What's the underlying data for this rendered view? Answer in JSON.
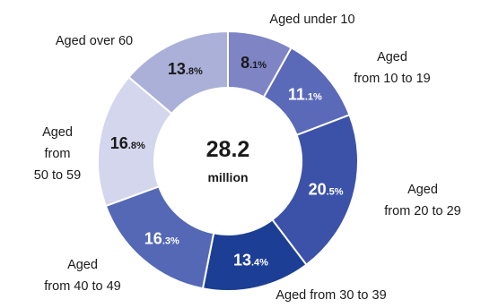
{
  "chart_data": {
    "type": "pie",
    "subtype": "donut",
    "center": {
      "value": "28.2",
      "unit": "million"
    },
    "slices": [
      {
        "label": "Aged under 10",
        "value": 8.1,
        "int": "8",
        "dec": ".1%",
        "color": "#7e84c4",
        "text_color": "#1a1a1a"
      },
      {
        "label": "Aged from 10 to 19",
        "value": 11.1,
        "int": "11",
        "dec": ".1%",
        "color": "#5a69b8",
        "text_color": "#ffffff"
      },
      {
        "label": "Aged from 20 to 29",
        "value": 20.5,
        "int": "20",
        "dec": ".5%",
        "color": "#3c52a8",
        "text_color": "#ffffff"
      },
      {
        "label": "Aged from 30 to 39",
        "value": 13.4,
        "int": "13",
        "dec": ".4%",
        "color": "#1c3e94",
        "text_color": "#ffffff"
      },
      {
        "label": "Aged from 40 to 49",
        "value": 16.3,
        "int": "16",
        "dec": ".3%",
        "color": "#5468b6",
        "text_color": "#ffffff"
      },
      {
        "label": "Aged from 50 to 59",
        "value": 16.8,
        "int": "16",
        "dec": ".8%",
        "color": "#d3d6ec",
        "text_color": "#1a1a1a"
      },
      {
        "label": "Aged over 60",
        "value": 13.8,
        "int": "13",
        "dec": ".8%",
        "color": "#abb0d9",
        "text_color": "#1a1a1a"
      }
    ],
    "category_labels": [
      [
        "Aged under 10"
      ],
      [
        "Aged",
        "from 10 to 19"
      ],
      [
        "Aged",
        "from 20 to 29"
      ],
      [
        "Aged from 30 to 39"
      ],
      [
        "Aged",
        "from 40 to 49"
      ],
      [
        "Aged",
        "from",
        "50 to 59"
      ],
      [
        "Aged over 60"
      ]
    ]
  }
}
